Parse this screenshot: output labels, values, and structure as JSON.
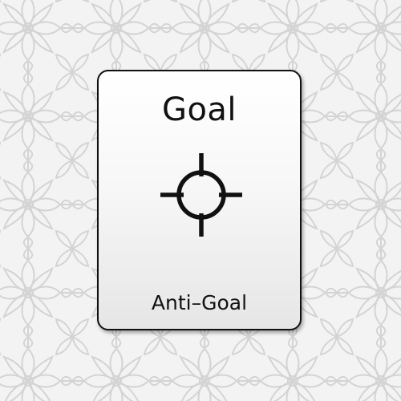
{
  "card": {
    "title": "Goal",
    "icon": "crosshair-icon",
    "subtitle": "Anti–Goal"
  },
  "colors": {
    "background": "#f3f3f3",
    "pattern": "#d6d6d6",
    "card_top": "#ffffff",
    "card_bottom": "#e6e6e6",
    "border": "#111111",
    "text": "#111111"
  }
}
